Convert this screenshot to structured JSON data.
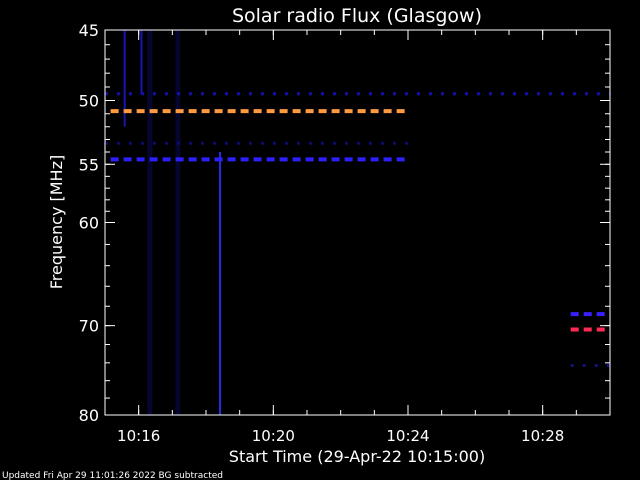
{
  "chart_data": {
    "type": "heatmap",
    "title": "Solar radio Flux (Glasgow)",
    "xlabel": "Start Time (29-Apr-22 10:15:00)",
    "ylabel": "Frequency [MHz]",
    "footer": "Updated Fri Apr 29 11:01:26 2022   BG subtracted",
    "x_unit": "time (HH:MM)",
    "xlim": [
      "10:15:00",
      "10:30:00"
    ],
    "x_ticks": [
      "10:16",
      "10:20",
      "10:24",
      "10:28"
    ],
    "ylim": [
      45,
      80
    ],
    "y_ticks": [
      45,
      50,
      55,
      60,
      70,
      80
    ],
    "y_inverted": true,
    "y_scale": "log",
    "background_color": "#000000",
    "emission_bands": [
      {
        "freq_mhz": 50.8,
        "start": "10:15:10",
        "end": "10:24:00",
        "color": "#ff9a40",
        "intensity": "high"
      },
      {
        "freq_mhz": 54.6,
        "start": "10:15:10",
        "end": "10:24:00",
        "color": "#2d20ff",
        "intensity": "medium"
      },
      {
        "freq_mhz": 49.5,
        "start": "10:15:00",
        "end": "10:30:00",
        "color": "#1410b0",
        "intensity": "low"
      },
      {
        "freq_mhz": 53.3,
        "start": "10:15:00",
        "end": "10:24:00",
        "color": "#0d0a70",
        "intensity": "low"
      },
      {
        "freq_mhz": 68.8,
        "start": "10:28:50",
        "end": "10:30:00",
        "color": "#3a20ff",
        "intensity": "medium"
      },
      {
        "freq_mhz": 70.4,
        "start": "10:28:50",
        "end": "10:30:00",
        "color": "#ff2a55",
        "intensity": "high"
      },
      {
        "freq_mhz": 74.3,
        "start": "10:28:50",
        "end": "10:30:00",
        "color": "#12107a",
        "intensity": "low"
      }
    ],
    "vertical_features": [
      {
        "time": "10:15:35",
        "freq_from": 45,
        "freq_to": 52,
        "color": "#1a18c8",
        "intensity": "medium"
      },
      {
        "time": "10:16:05",
        "freq_from": 45,
        "freq_to": 49.5,
        "color": "#1a18c8",
        "intensity": "medium"
      },
      {
        "time": "10:18:25",
        "freq_from": 54,
        "freq_to": 80,
        "color": "#2a30ff",
        "intensity": "medium"
      },
      {
        "time": "10:16:20",
        "freq_from": 45,
        "freq_to": 80,
        "color": "#0a0850",
        "intensity": "low"
      },
      {
        "time": "10:17:10",
        "freq_from": 45,
        "freq_to": 80,
        "color": "#0a0850",
        "intensity": "low"
      }
    ]
  }
}
